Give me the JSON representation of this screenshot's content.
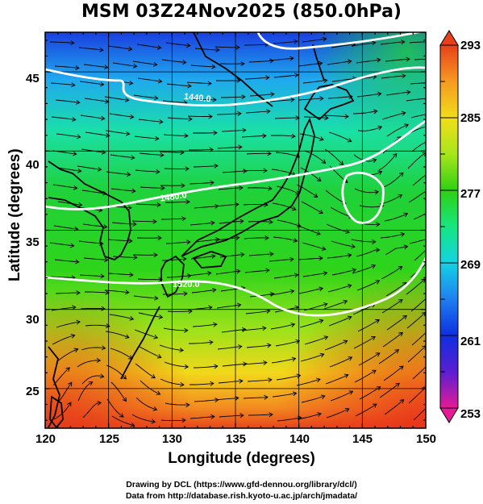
{
  "title": "MSM 03Z24Nov2025 (850.0hPa)",
  "x_axis": {
    "label": "Longitude (degrees)",
    "ticks": [
      "120",
      "125",
      "130",
      "135",
      "140",
      "145",
      "150"
    ],
    "range": [
      120,
      150
    ]
  },
  "y_axis": {
    "label": "Latitude  (degrees)",
    "ticks": [
      "25",
      "30",
      "35",
      "40",
      "45"
    ],
    "range": [
      22.5,
      47.5
    ]
  },
  "colorbar": {
    "ticks": [
      "293",
      "285",
      "277",
      "269",
      "261",
      "253"
    ],
    "range": [
      253,
      293
    ],
    "colors": [
      "#e61a96",
      "#5a1ed2",
      "#0d2fe0",
      "#1f7ff0",
      "#14d3e3",
      "#17e680",
      "#2fd012",
      "#a8e61a",
      "#f2dd1a",
      "#f59a20",
      "#e8401a"
    ]
  },
  "contours": [
    {
      "label": "1440.0",
      "color": "#ffffff"
    },
    {
      "label": "1480.0",
      "color": "#ffffff"
    },
    {
      "label": "1520.0",
      "color": "#ffffff"
    }
  ],
  "credits": [
    "Drawing by DCL (https://www.gfd-dennou.org/library/dcl/)",
    "Data from http://database.rish.kyoto-u.ac.jp/arch/jmadata/"
  ],
  "chart_data": {
    "type": "heatmap",
    "variable": "temperature with geopotential height contours and wind streamlines",
    "x": [
      120,
      125,
      130,
      135,
      140,
      145,
      150
    ],
    "y": [
      25,
      30,
      35,
      40,
      45
    ],
    "xlim": [
      120,
      150
    ],
    "ylim": [
      22.5,
      47.5
    ],
    "zlim": [
      253,
      293
    ],
    "contour_levels": [
      1440,
      1480,
      1520
    ],
    "grid": true
  }
}
